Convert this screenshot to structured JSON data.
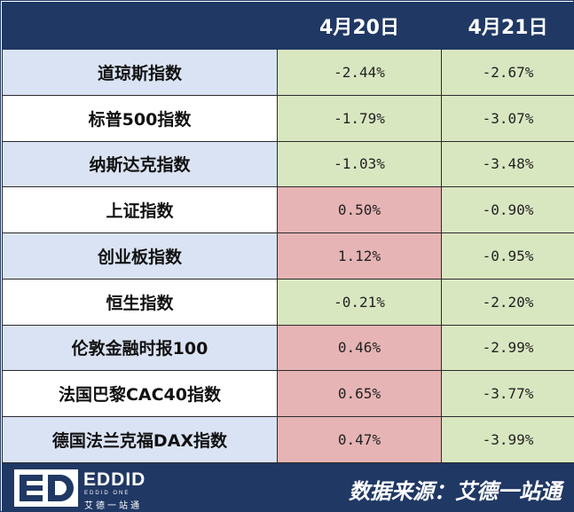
{
  "chart_data": {
    "type": "table",
    "columns": [
      "",
      "4月20日",
      "4月21日"
    ],
    "rows": [
      {
        "name": "道琼斯指数",
        "v1": "-2.44%",
        "v2": "-2.67%"
      },
      {
        "name": "标普500指数",
        "v1": "-1.79%",
        "v2": "-3.07%"
      },
      {
        "name": "纳斯达克指数",
        "v1": "-1.03%",
        "v2": "-3.48%"
      },
      {
        "name": "上证指数",
        "v1": "0.50%",
        "v2": "-0.90%"
      },
      {
        "name": "创业板指数",
        "v1": "1.12%",
        "v2": "-0.95%"
      },
      {
        "name": "恒生指数",
        "v1": "-0.21%",
        "v2": "-2.20%"
      },
      {
        "name": "伦敦金融时报100",
        "v1": "0.46%",
        "v2": "-2.99%"
      },
      {
        "name": "法国巴黎CAC40指数",
        "v1": "0.65%",
        "v2": "-3.77%"
      },
      {
        "name": "德国法兰克福DAX指数",
        "v1": "0.47%",
        "v2": "-3.99%"
      }
    ]
  },
  "footer": {
    "logo_text": "EDDID",
    "logo_sub": "EDDID ONE",
    "logo_cn": "艾德一站通",
    "source": "数据来源：艾德一站通"
  },
  "colors": {
    "header": "#203864",
    "negative": "#d9e7c1",
    "positive": "#e6b4b4",
    "row_alt": "#dae3f3"
  }
}
